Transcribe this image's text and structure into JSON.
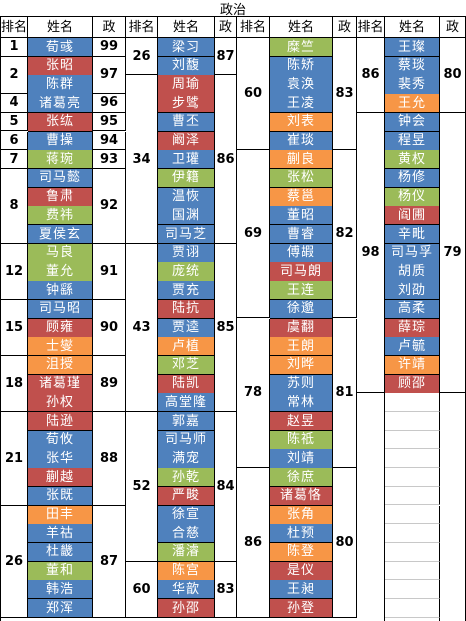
{
  "title": "政治",
  "headers": {
    "rank": "排名",
    "name": "姓名",
    "score": "政"
  },
  "colors": {
    "blue": "#4f81bd",
    "red": "#c0504d",
    "green": "#9bbb59",
    "orange": "#f79646",
    "blank": "#ffffff",
    "grid": "#000000"
  },
  "columns": [
    {
      "groups": [
        {
          "rank": "1",
          "score": "99",
          "names": [
            {
              "text": "荀彧",
              "color": "blue"
            }
          ]
        },
        {
          "rank": "2",
          "score": "97",
          "names": [
            {
              "text": "张昭",
              "color": "red"
            },
            {
              "text": "陈群",
              "color": "blue"
            }
          ]
        },
        {
          "rank": "4",
          "score": "96",
          "names": [
            {
              "text": "诸葛亮",
              "color": "blue"
            }
          ]
        },
        {
          "rank": "5",
          "score": "95",
          "names": [
            {
              "text": "张纮",
              "color": "red"
            }
          ]
        },
        {
          "rank": "6",
          "score": "94",
          "names": [
            {
              "text": "曹操",
              "color": "blue"
            }
          ]
        },
        {
          "rank": "7",
          "score": "93",
          "names": [
            {
              "text": "蒋琬",
              "color": "green"
            }
          ]
        },
        {
          "rank": "8",
          "score": "92",
          "names": [
            {
              "text": "司马懿",
              "color": "blue"
            },
            {
              "text": "鲁肃",
              "color": "red"
            },
            {
              "text": "费祎",
              "color": "green"
            },
            {
              "text": "夏侯玄",
              "color": "blue"
            }
          ]
        },
        {
          "rank": "12",
          "score": "91",
          "names": [
            {
              "text": "马良",
              "color": "green"
            },
            {
              "text": "董允",
              "color": "green"
            },
            {
              "text": "钟繇",
              "color": "blue"
            }
          ]
        },
        {
          "rank": "15",
          "score": "90",
          "names": [
            {
              "text": "司马昭",
              "color": "blue"
            },
            {
              "text": "顾雍",
              "color": "red"
            },
            {
              "text": "士燮",
              "color": "orange"
            }
          ]
        },
        {
          "rank": "18",
          "score": "89",
          "names": [
            {
              "text": "沮授",
              "color": "orange"
            },
            {
              "text": "诸葛瑾",
              "color": "red"
            },
            {
              "text": "孙权",
              "color": "red"
            }
          ]
        },
        {
          "rank": "21",
          "score": "88",
          "names": [
            {
              "text": "陆逊",
              "color": "red"
            },
            {
              "text": "荀攸",
              "color": "blue"
            },
            {
              "text": "张华",
              "color": "blue"
            },
            {
              "text": "蒯越",
              "color": "red"
            },
            {
              "text": "张既",
              "color": "blue"
            }
          ]
        },
        {
          "rank": "26",
          "score": "87",
          "names": [
            {
              "text": "田丰",
              "color": "orange"
            },
            {
              "text": "羊祜",
              "color": "blue"
            },
            {
              "text": "杜畿",
              "color": "blue"
            },
            {
              "text": "董和",
              "color": "green"
            },
            {
              "text": "韩浩",
              "color": "blue"
            },
            {
              "text": "郑浑",
              "color": "blue"
            }
          ]
        }
      ]
    },
    {
      "groups": [
        {
          "rank": "26",
          "score": "87",
          "names": [
            {
              "text": "梁习",
              "color": "blue"
            },
            {
              "text": "刘馥",
              "color": "blue"
            }
          ]
        },
        {
          "rank": "34",
          "score": "86",
          "names": [
            {
              "text": "周瑜",
              "color": "red"
            },
            {
              "text": "步骘",
              "color": "red"
            },
            {
              "text": "曹丕",
              "color": "blue"
            },
            {
              "text": "阚泽",
              "color": "red"
            },
            {
              "text": "卫瓘",
              "color": "blue"
            },
            {
              "text": "伊籍",
              "color": "green"
            },
            {
              "text": "温恢",
              "color": "blue"
            },
            {
              "text": "国渊",
              "color": "blue"
            },
            {
              "text": "司马芝",
              "color": "blue"
            }
          ]
        },
        {
          "rank": "43",
          "score": "85",
          "names": [
            {
              "text": "贾诩",
              "color": "blue"
            },
            {
              "text": "庞统",
              "color": "green"
            },
            {
              "text": "贾充",
              "color": "blue"
            },
            {
              "text": "陆抗",
              "color": "red"
            },
            {
              "text": "贾逵",
              "color": "blue"
            },
            {
              "text": "卢植",
              "color": "orange"
            },
            {
              "text": "邓芝",
              "color": "green"
            },
            {
              "text": "陆凯",
              "color": "red"
            },
            {
              "text": "高堂隆",
              "color": "blue"
            }
          ]
        },
        {
          "rank": "52",
          "score": "84",
          "names": [
            {
              "text": "郭嘉",
              "color": "blue"
            },
            {
              "text": "司马师",
              "color": "blue"
            },
            {
              "text": "满宠",
              "color": "blue"
            },
            {
              "text": "孙乾",
              "color": "green"
            },
            {
              "text": "严畯",
              "color": "red"
            },
            {
              "text": "徐宣",
              "color": "blue"
            },
            {
              "text": "合慈",
              "color": "blue"
            },
            {
              "text": "潘濬",
              "color": "green"
            }
          ]
        },
        {
          "rank": "60",
          "score": "83",
          "names": [
            {
              "text": "陈宫",
              "color": "orange"
            },
            {
              "text": "华歆",
              "color": "blue"
            },
            {
              "text": "孙邵",
              "color": "red"
            }
          ]
        }
      ]
    },
    {
      "groups": [
        {
          "rank": "60",
          "score": "83",
          "names": [
            {
              "text": "糜竺",
              "color": "green"
            },
            {
              "text": "陈矫",
              "color": "blue"
            },
            {
              "text": "袁涣",
              "color": "blue"
            },
            {
              "text": "王凌",
              "color": "blue"
            },
            {
              "text": "刘表",
              "color": "orange"
            },
            {
              "text": "崔琰",
              "color": "blue"
            }
          ]
        },
        {
          "rank": "69",
          "score": "82",
          "names": [
            {
              "text": "蒯良",
              "color": "orange"
            },
            {
              "text": "张松",
              "color": "green"
            },
            {
              "text": "蔡邕",
              "color": "orange"
            },
            {
              "text": "董昭",
              "color": "blue"
            },
            {
              "text": "曹睿",
              "color": "blue"
            },
            {
              "text": "傅嘏",
              "color": "blue"
            },
            {
              "text": "司马朗",
              "color": "red"
            },
            {
              "text": "王连",
              "color": "green"
            },
            {
              "text": "徐邈",
              "color": "blue"
            }
          ]
        },
        {
          "rank": "78",
          "score": "81",
          "names": [
            {
              "text": "虞翻",
              "color": "red"
            },
            {
              "text": "王朗",
              "color": "orange"
            },
            {
              "text": "刘晔",
              "color": "orange"
            },
            {
              "text": "苏则",
              "color": "blue"
            },
            {
              "text": "常林",
              "color": "blue"
            },
            {
              "text": "赵昱",
              "color": "red"
            },
            {
              "text": "陈祗",
              "color": "green"
            },
            {
              "text": "刘靖",
              "color": "blue"
            }
          ]
        },
        {
          "rank": "86",
          "score": "80",
          "names": [
            {
              "text": "徐庶",
              "color": "green"
            },
            {
              "text": "诸葛恪",
              "color": "red"
            },
            {
              "text": "张角",
              "color": "orange"
            },
            {
              "text": "杜预",
              "color": "blue"
            },
            {
              "text": "陈登",
              "color": "orange"
            },
            {
              "text": "是仪",
              "color": "red"
            },
            {
              "text": "王昶",
              "color": "blue"
            },
            {
              "text": "孙登",
              "color": "red"
            }
          ]
        }
      ]
    },
    {
      "groups": [
        {
          "rank": "86",
          "score": "80",
          "names": [
            {
              "text": "王璨",
              "color": "blue"
            },
            {
              "text": "蔡琰",
              "color": "blue"
            },
            {
              "text": "裴秀",
              "color": "blue"
            },
            {
              "text": "王允",
              "color": "orange"
            }
          ]
        },
        {
          "rank": "98",
          "score": "79",
          "names": [
            {
              "text": "钟会",
              "color": "blue"
            },
            {
              "text": "程昱",
              "color": "blue"
            },
            {
              "text": "黄权",
              "color": "green"
            },
            {
              "text": "杨修",
              "color": "blue"
            },
            {
              "text": "杨仪",
              "color": "green"
            },
            {
              "text": "阎圃",
              "color": "red"
            },
            {
              "text": "辛毗",
              "color": "blue"
            },
            {
              "text": "司马孚",
              "color": "blue"
            },
            {
              "text": "胡质",
              "color": "blue"
            },
            {
              "text": "刘劭",
              "color": "blue"
            },
            {
              "text": "高柔",
              "color": "blue"
            },
            {
              "text": "薛琮",
              "color": "red"
            },
            {
              "text": "卢毓",
              "color": "blue"
            },
            {
              "text": "许靖",
              "color": "orange"
            },
            {
              "text": "顾邵",
              "color": "red"
            }
          ]
        },
        {
          "rank": "",
          "score": "",
          "names": [
            {
              "text": "",
              "color": "blank"
            },
            {
              "text": "",
              "color": "blank"
            },
            {
              "text": "",
              "color": "blank"
            },
            {
              "text": "",
              "color": "blank"
            },
            {
              "text": "",
              "color": "blank"
            },
            {
              "text": "",
              "color": "blank"
            },
            {
              "text": "",
              "color": "blank"
            },
            {
              "text": "",
              "color": "blank"
            },
            {
              "text": "",
              "color": "blank"
            },
            {
              "text": "",
              "color": "blank"
            },
            {
              "text": "",
              "color": "blank"
            },
            {
              "text": "",
              "color": "blank"
            },
            {
              "text": "",
              "color": "blank"
            }
          ]
        }
      ]
    }
  ]
}
